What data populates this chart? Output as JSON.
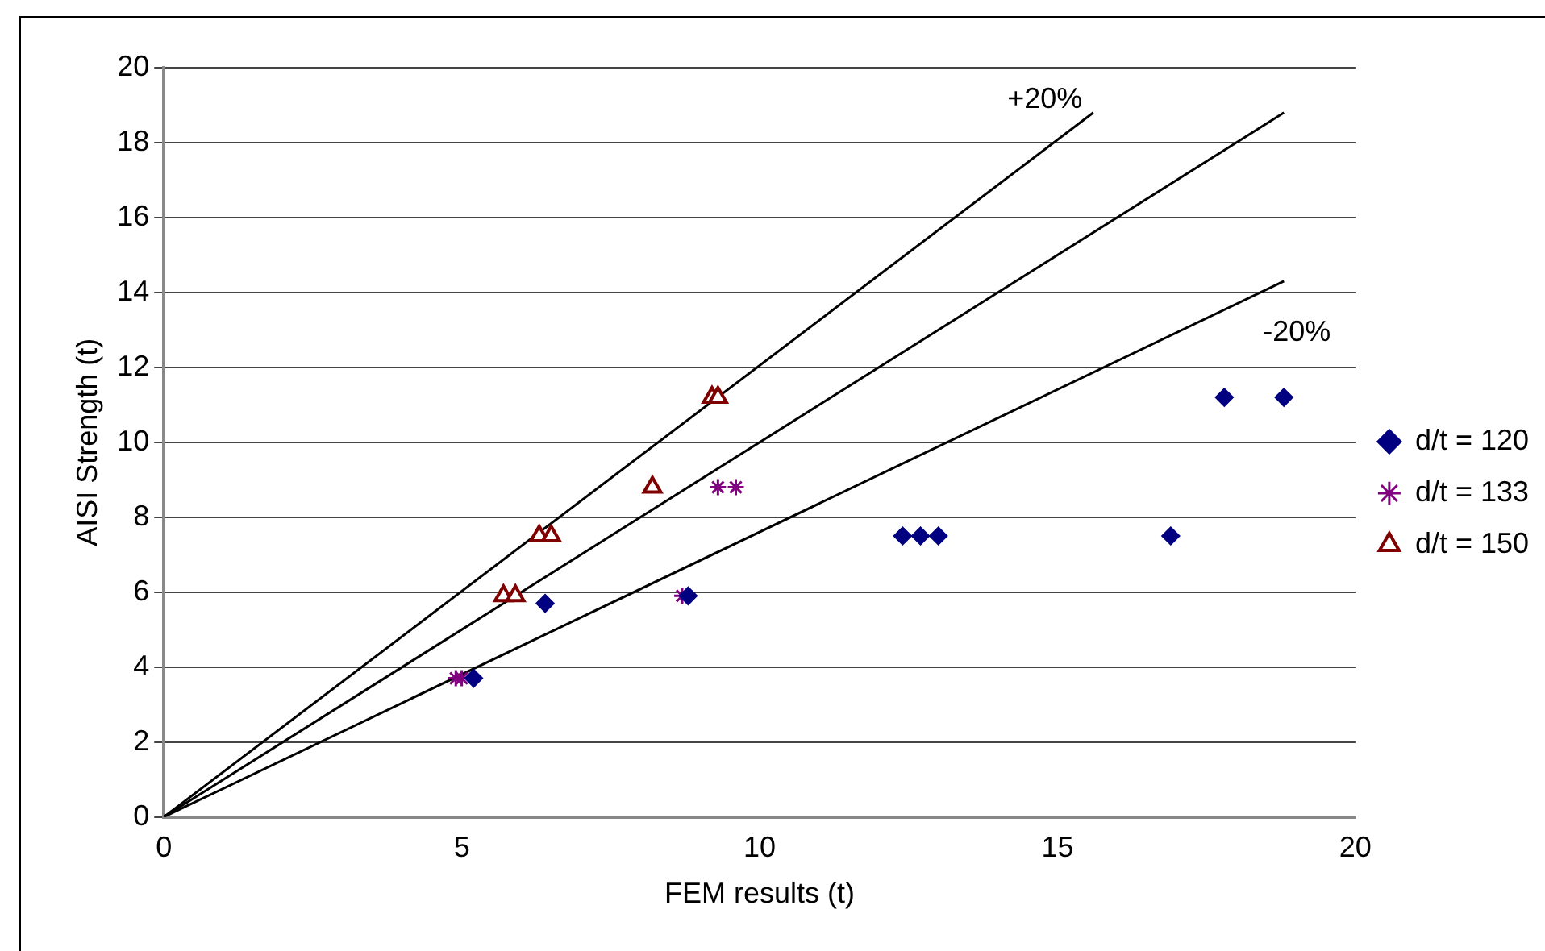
{
  "chart_data": {
    "type": "scatter",
    "xlabel": "FEM results (t)",
    "ylabel": "AISI Strength (t)",
    "xlim": [
      0,
      20
    ],
    "xticks": [
      0,
      5,
      10,
      15,
      20
    ],
    "ylim": [
      0,
      20
    ],
    "yticks": [
      0,
      2,
      4,
      6,
      8,
      10,
      12,
      14,
      16,
      18,
      20
    ],
    "grid": "y",
    "legend": "right",
    "series": [
      {
        "name": "d/t = 120",
        "color": "#000080",
        "marker": "diamond",
        "x": [
          5.2,
          6.4,
          8.8,
          12.4,
          12.7,
          13.0,
          16.9,
          17.8,
          18.8
        ],
        "values": [
          3.7,
          5.7,
          5.9,
          7.5,
          7.5,
          7.5,
          7.5,
          11.2,
          11.2
        ]
      },
      {
        "name": "d/t = 133",
        "color": "#800080",
        "marker": "cross",
        "x": [
          4.9,
          5.0,
          8.7,
          9.3,
          9.6
        ],
        "values": [
          3.7,
          3.7,
          5.9,
          8.8,
          8.8
        ]
      },
      {
        "name": "d/t = 150",
        "color": "#800000",
        "marker": "triangle",
        "x": [
          5.7,
          5.9,
          6.3,
          6.5,
          8.2,
          9.2,
          9.3
        ],
        "values": [
          5.9,
          5.9,
          7.5,
          7.5,
          8.8,
          11.2,
          11.2
        ]
      },
      {
        "type": "line",
        "color": "#000000",
        "marker": "none",
        "x": [
          0,
          15.6
        ],
        "values": [
          0,
          18.8
        ]
      },
      {
        "type": "line",
        "color": "#000000",
        "marker": "none",
        "x": [
          0,
          18.8
        ],
        "values": [
          0,
          18.8
        ]
      },
      {
        "type": "line",
        "color": "#000000",
        "marker": "none",
        "x": [
          0,
          18.8
        ],
        "values": [
          0,
          14.3
        ]
      }
    ],
    "annotations": [
      "+20%",
      "-20%"
    ]
  }
}
